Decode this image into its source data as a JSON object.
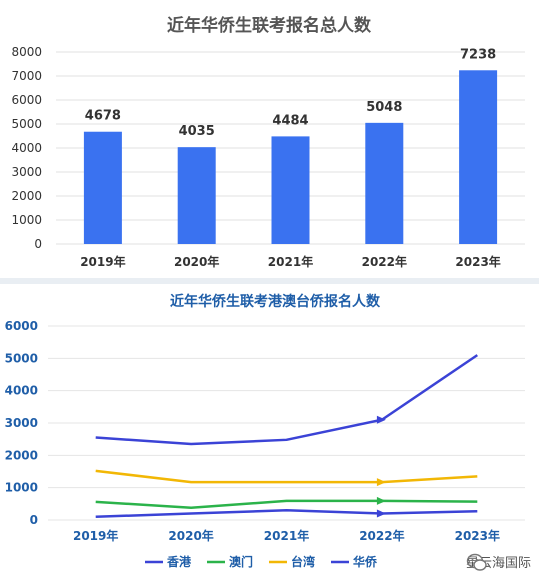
{
  "chart_data": [
    {
      "type": "bar",
      "title": "近年华侨生联考报名总人数",
      "categories": [
        "2019年",
        "2020年",
        "2021年",
        "2022年",
        "2023年"
      ],
      "values": [
        4678,
        4035,
        4484,
        5048,
        7238
      ],
      "data_labels": [
        "4678",
        "4035",
        "4484",
        "5048",
        "7238"
      ],
      "ylim": [
        0,
        8000
      ],
      "yticks": [
        0,
        1000,
        2000,
        3000,
        4000,
        5000,
        6000,
        7000,
        8000
      ],
      "ytick_labels": [
        "0",
        "1000",
        "2000",
        "3000",
        "4000",
        "5000",
        "6000",
        "7000",
        "8000"
      ],
      "grid": true,
      "color": "#3a72f0"
    },
    {
      "type": "line",
      "title": "近年华侨生联考港澳台侨报名人数",
      "categories": [
        "2019年",
        "2020年",
        "2021年",
        "2022年",
        "2023年"
      ],
      "series": [
        {
          "name": "香港",
          "values": [
            100,
            200,
            300,
            200,
            270
          ],
          "color": "#3b43d6"
        },
        {
          "name": "澳门",
          "values": [
            560,
            380,
            590,
            590,
            570
          ],
          "color": "#2bb34a"
        },
        {
          "name": "台湾",
          "values": [
            1520,
            1170,
            1170,
            1170,
            1350
          ],
          "color": "#f2b705"
        },
        {
          "name": "华侨",
          "values": [
            2550,
            2350,
            2480,
            3100,
            5100
          ],
          "color": "#3b43d6"
        }
      ],
      "ylim": [
        0,
        6000
      ],
      "yticks": [
        0,
        1000,
        2000,
        3000,
        4000,
        5000,
        6000
      ],
      "ytick_labels": [
        "0",
        "1000",
        "2000",
        "3000",
        "4000",
        "5000",
        "6000"
      ],
      "grid": true,
      "legend_position": "bottom"
    }
  ],
  "watermark": {
    "text": "星云海国际",
    "icon": "wechat-icon"
  }
}
